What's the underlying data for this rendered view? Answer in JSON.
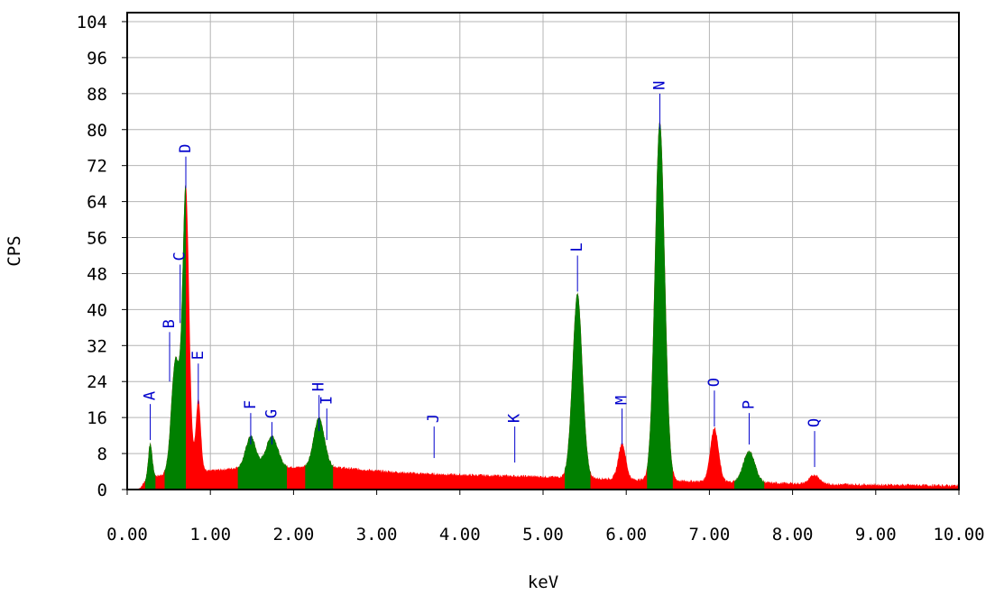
{
  "chart_data": {
    "type": "area",
    "xlabel": "keV",
    "ylabel": "CPS",
    "xlim": [
      0,
      10
    ],
    "ylim": [
      0,
      106
    ],
    "grid": true,
    "x_ticks": [
      "0.00",
      "1.00",
      "2.00",
      "3.00",
      "4.00",
      "5.00",
      "6.00",
      "7.00",
      "8.00",
      "9.00",
      "10.00"
    ],
    "y_ticks": [
      "0",
      "8",
      "16",
      "24",
      "32",
      "40",
      "48",
      "56",
      "64",
      "72",
      "80",
      "88",
      "96",
      "104"
    ],
    "background": {
      "color": "#ff0000",
      "points": [
        [
          0.0,
          0
        ],
        [
          0.1,
          0
        ],
        [
          0.15,
          0.3
        ],
        [
          0.2,
          1.5
        ],
        [
          0.35,
          3.0
        ],
        [
          0.5,
          3.5
        ],
        [
          0.6,
          4.0
        ],
        [
          1.0,
          4.2
        ],
        [
          1.3,
          4.8
        ],
        [
          1.6,
          5.0
        ],
        [
          2.0,
          5.0
        ],
        [
          2.5,
          5.0
        ],
        [
          3.0,
          4.2
        ],
        [
          3.5,
          3.6
        ],
        [
          4.0,
          3.3
        ],
        [
          4.5,
          3.1
        ],
        [
          5.0,
          2.9
        ],
        [
          5.5,
          2.6
        ],
        [
          6.0,
          2.3
        ],
        [
          6.5,
          2.0
        ],
        [
          7.0,
          1.8
        ],
        [
          7.5,
          1.6
        ],
        [
          8.0,
          1.4
        ],
        [
          8.5,
          1.2
        ],
        [
          9.0,
          1.1
        ],
        [
          9.5,
          1.0
        ],
        [
          10.0,
          0.9
        ]
      ]
    },
    "series": [
      {
        "color": "#ff0000",
        "peaks": [
          {
            "center": 0.705,
            "height": 63,
            "sigma": 0.04
          },
          {
            "center": 0.855,
            "height": 16,
            "sigma": 0.03
          },
          {
            "center": 5.95,
            "height": 8,
            "sigma": 0.045
          },
          {
            "center": 7.06,
            "height": 12,
            "sigma": 0.05
          },
          {
            "center": 8.265,
            "height": 2.0,
            "sigma": 0.06
          }
        ]
      },
      {
        "color": "#008000",
        "peaks": [
          {
            "center": 0.277,
            "height": 8,
            "sigma": 0.025
          },
          {
            "center": 0.58,
            "height": 25,
            "sigma": 0.05
          },
          {
            "center": 1.485,
            "height": 7,
            "sigma": 0.06
          },
          {
            "center": 1.74,
            "height": 7,
            "sigma": 0.07
          },
          {
            "center": 2.307,
            "height": 11,
            "sigma": 0.065
          },
          {
            "center": 5.414,
            "height": 41,
            "sigma": 0.06
          },
          {
            "center": 6.404,
            "height": 80,
            "sigma": 0.06
          },
          {
            "center": 7.478,
            "height": 7,
            "sigma": 0.07
          }
        ]
      }
    ],
    "peak_markers": [
      {
        "label": "A",
        "x": 0.277,
        "tip": 11,
        "top": 19
      },
      {
        "label": "B",
        "x": 0.51,
        "tip": 24,
        "top": 35
      },
      {
        "label": "C",
        "x": 0.637,
        "tip": 37,
        "top": 50
      },
      {
        "label": "D",
        "x": 0.705,
        "tip": 67,
        "top": 74
      },
      {
        "label": "E",
        "x": 0.855,
        "tip": 19,
        "top": 28
      },
      {
        "label": "F",
        "x": 1.485,
        "tip": 10,
        "top": 17
      },
      {
        "label": "G",
        "x": 1.74,
        "tip": 10,
        "top": 15
      },
      {
        "label": "H",
        "x": 2.307,
        "tip": 13,
        "top": 21
      },
      {
        "label": "I",
        "x": 2.4,
        "tip": 11,
        "top": 18
      },
      {
        "label": "J",
        "x": 3.69,
        "tip": 7,
        "top": 14
      },
      {
        "label": "K",
        "x": 4.66,
        "tip": 6,
        "top": 14
      },
      {
        "label": "L",
        "x": 5.414,
        "tip": 44,
        "top": 52
      },
      {
        "label": "M",
        "x": 5.95,
        "tip": 10,
        "top": 18
      },
      {
        "label": "N",
        "x": 6.404,
        "tip": 80,
        "top": 88
      },
      {
        "label": "O",
        "x": 7.06,
        "tip": 14,
        "top": 22
      },
      {
        "label": "P",
        "x": 7.478,
        "tip": 10,
        "top": 17
      },
      {
        "label": "Q",
        "x": 8.265,
        "tip": 5,
        "top": 13
      }
    ]
  }
}
